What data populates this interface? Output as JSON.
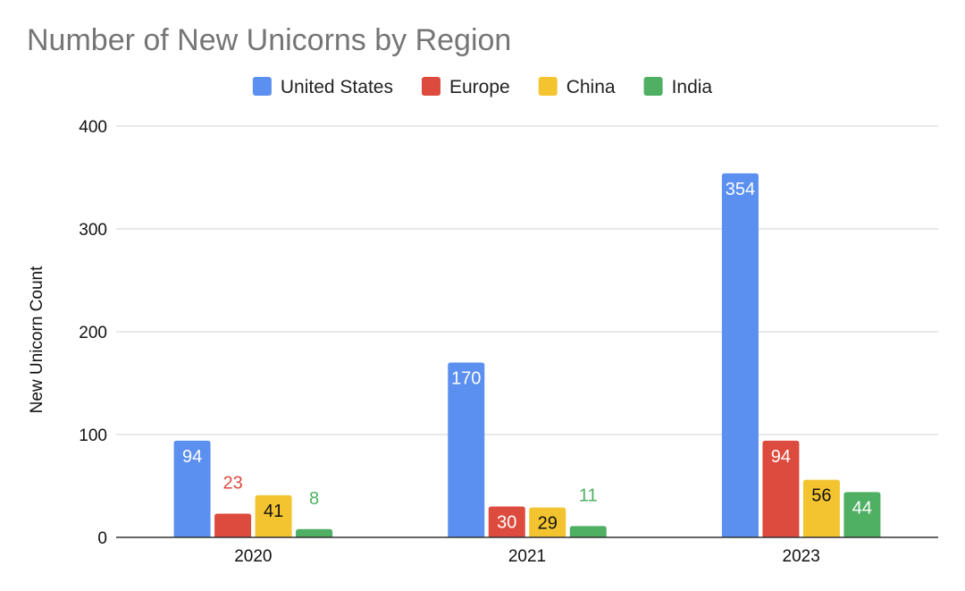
{
  "chart_data": {
    "type": "bar",
    "title": "Number of New Unicorns by Region",
    "xlabel": "",
    "ylabel": "New Unicorn Count",
    "categories": [
      "2020",
      "2021",
      "2023"
    ],
    "ylim": [
      0,
      400
    ],
    "yticks": [
      0,
      100,
      200,
      300,
      400
    ],
    "grid": true,
    "legend_position": "top",
    "series": [
      {
        "name": "United States",
        "color": "#5B8FF0",
        "values": [
          94,
          170,
          354
        ]
      },
      {
        "name": "Europe",
        "color": "#DD4B3E",
        "values": [
          23,
          30,
          94
        ]
      },
      {
        "name": "China",
        "color": "#F4C430",
        "values": [
          41,
          29,
          56
        ]
      },
      {
        "name": "India",
        "color": "#4FAF62",
        "values": [
          8,
          11,
          44
        ]
      }
    ]
  }
}
